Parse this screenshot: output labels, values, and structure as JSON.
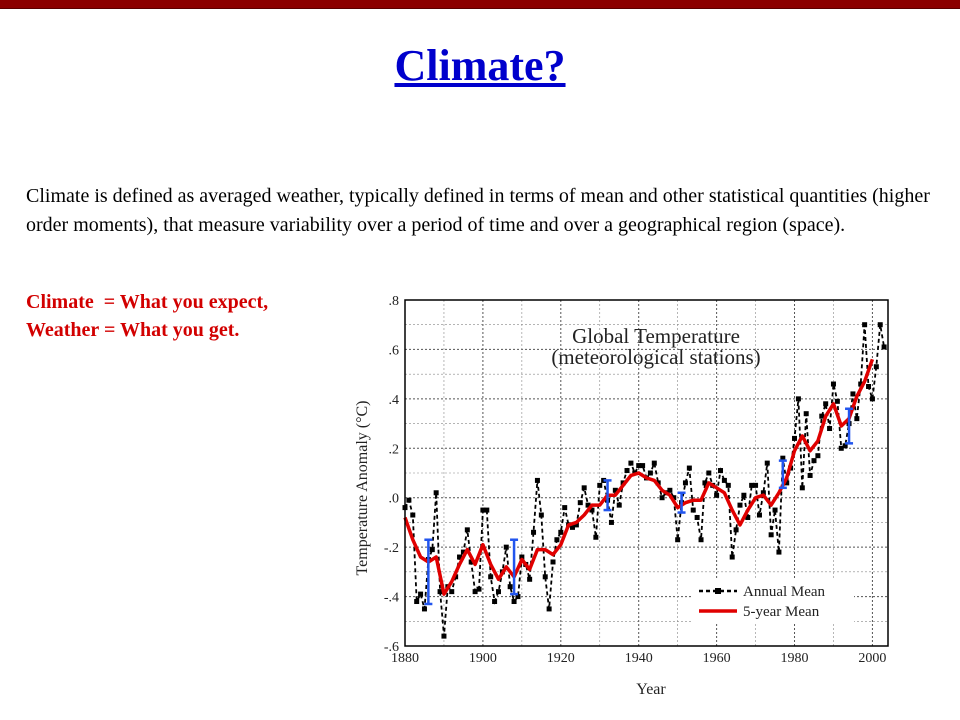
{
  "slide": {
    "title": "Climate?",
    "definition": "Climate is defined as averaged weather, typically defined in terms of mean and other statistical quantities (higher order moments), that measure variability over a period of time and over a geographical region (space).",
    "contrast_line1": "Climate  = What you expect,",
    "contrast_line2": "Weather = What you get."
  },
  "colors": {
    "topbar": "#8b0000",
    "title": "#0000cc",
    "contrast": "#d20000"
  },
  "chart_data": {
    "type": "line",
    "title": "Global Temperature",
    "subtitle": "(meteorological stations)",
    "xlabel": "Year",
    "ylabel": "Temperature Anomaly (°C)",
    "xlim": [
      1880,
      2004
    ],
    "ylim": [
      -0.6,
      0.8
    ],
    "xticks": [
      "1880",
      "1900",
      "1920",
      "1940",
      "1960",
      "1980",
      "2000"
    ],
    "yticks": [
      ".8",
      ".6",
      ".4",
      ".2",
      ".0",
      "-.2",
      "-.4",
      "-.6"
    ],
    "ytick_values": [
      0.8,
      0.6,
      0.4,
      0.2,
      0.0,
      -0.2,
      -0.4,
      -0.6
    ],
    "grid": true,
    "legend": "bottom-right",
    "series": [
      {
        "name": "Annual Mean",
        "style": "dashed-black-squares",
        "color": "#000000",
        "x": [
          1880,
          1881,
          1882,
          1883,
          1884,
          1885,
          1886,
          1887,
          1888,
          1889,
          1890,
          1891,
          1892,
          1893,
          1894,
          1895,
          1896,
          1897,
          1898,
          1899,
          1900,
          1901,
          1902,
          1903,
          1904,
          1905,
          1906,
          1907,
          1908,
          1909,
          1910,
          1911,
          1912,
          1913,
          1914,
          1915,
          1916,
          1917,
          1918,
          1919,
          1920,
          1921,
          1922,
          1923,
          1924,
          1925,
          1926,
          1927,
          1928,
          1929,
          1930,
          1931,
          1932,
          1933,
          1934,
          1935,
          1936,
          1937,
          1938,
          1939,
          1940,
          1941,
          1942,
          1943,
          1944,
          1945,
          1946,
          1947,
          1948,
          1949,
          1950,
          1951,
          1952,
          1953,
          1954,
          1955,
          1956,
          1957,
          1958,
          1959,
          1960,
          1961,
          1962,
          1963,
          1964,
          1965,
          1966,
          1967,
          1968,
          1969,
          1970,
          1971,
          1972,
          1973,
          1974,
          1975,
          1976,
          1977,
          1978,
          1979,
          1980,
          1981,
          1982,
          1983,
          1984,
          1985,
          1986,
          1987,
          1988,
          1989,
          1990,
          1991,
          1992,
          1993,
          1994,
          1995,
          1996,
          1997,
          1998,
          1999,
          2000,
          2001,
          2002,
          2003
        ],
        "values": [
          -0.04,
          -0.01,
          -0.07,
          -0.42,
          -0.39,
          -0.45,
          -0.25,
          -0.21,
          0.02,
          -0.38,
          -0.56,
          -0.36,
          -0.38,
          -0.32,
          -0.24,
          -0.22,
          -0.13,
          -0.26,
          -0.38,
          -0.37,
          -0.05,
          -0.05,
          -0.32,
          -0.42,
          -0.38,
          -0.3,
          -0.2,
          -0.36,
          -0.42,
          -0.4,
          -0.24,
          -0.27,
          -0.33,
          -0.14,
          0.07,
          -0.07,
          -0.32,
          -0.45,
          -0.26,
          -0.17,
          -0.14,
          -0.04,
          -0.11,
          -0.12,
          -0.11,
          -0.02,
          0.04,
          -0.03,
          -0.05,
          -0.16,
          0.05,
          0.07,
          -0.01,
          -0.1,
          0.03,
          -0.03,
          0.06,
          0.11,
          0.14,
          0.1,
          0.13,
          0.13,
          0.08,
          0.1,
          0.14,
          0.06,
          0.0,
          0.02,
          0.03,
          0.0,
          -0.17,
          -0.02,
          0.06,
          0.12,
          -0.05,
          -0.08,
          -0.17,
          0.06,
          0.1,
          0.05,
          0.01,
          0.11,
          0.07,
          0.05,
          -0.24,
          -0.13,
          -0.03,
          0.01,
          -0.08,
          0.05,
          0.05,
          -0.07,
          0.02,
          0.14,
          -0.15,
          -0.05,
          -0.22,
          0.16,
          0.06,
          0.12,
          0.24,
          0.4,
          0.04,
          0.34,
          0.09,
          0.15,
          0.17,
          0.33,
          0.38,
          0.28,
          0.46,
          0.39,
          0.2,
          0.21,
          0.3,
          0.42,
          0.32,
          0.46,
          0.7,
          0.45,
          0.4,
          0.53,
          0.7,
          0.61
        ]
      },
      {
        "name": "5-year Mean",
        "style": "solid-red",
        "color": "#e00000",
        "x": [
          1880,
          1882,
          1884,
          1886,
          1888,
          1890,
          1892,
          1894,
          1896,
          1898,
          1900,
          1902,
          1904,
          1906,
          1908,
          1910,
          1912,
          1914,
          1916,
          1918,
          1920,
          1922,
          1924,
          1926,
          1928,
          1930,
          1932,
          1934,
          1936,
          1938,
          1940,
          1942,
          1944,
          1946,
          1948,
          1950,
          1952,
          1954,
          1956,
          1958,
          1960,
          1962,
          1964,
          1966,
          1968,
          1970,
          1972,
          1974,
          1976,
          1978,
          1980,
          1982,
          1984,
          1986,
          1988,
          1990,
          1992,
          1994,
          1996,
          1998,
          2000
        ],
        "values": [
          -0.08,
          -0.17,
          -0.24,
          -0.26,
          -0.24,
          -0.39,
          -0.34,
          -0.27,
          -0.21,
          -0.27,
          -0.19,
          -0.27,
          -0.33,
          -0.28,
          -0.32,
          -0.25,
          -0.29,
          -0.21,
          -0.21,
          -0.23,
          -0.19,
          -0.11,
          -0.1,
          -0.07,
          -0.03,
          -0.03,
          0.01,
          0.01,
          0.05,
          0.09,
          0.1,
          0.08,
          0.07,
          0.03,
          0.01,
          -0.04,
          -0.02,
          -0.01,
          -0.01,
          0.06,
          0.04,
          0.02,
          -0.05,
          -0.11,
          -0.05,
          0.0,
          0.01,
          -0.03,
          0.02,
          0.08,
          0.19,
          0.25,
          0.19,
          0.23,
          0.33,
          0.38,
          0.29,
          0.32,
          0.41,
          0.47,
          0.56
        ]
      }
    ],
    "error_bars": [
      {
        "x": 1886,
        "low": -0.43,
        "high": -0.17
      },
      {
        "x": 1908,
        "low": -0.39,
        "high": -0.17
      },
      {
        "x": 1932,
        "low": -0.05,
        "high": 0.07
      },
      {
        "x": 1951,
        "low": -0.06,
        "high": 0.02
      },
      {
        "x": 1977,
        "low": 0.04,
        "high": 0.15
      },
      {
        "x": 1994,
        "low": 0.22,
        "high": 0.36
      }
    ],
    "error_bar_color": "#2255ee"
  }
}
